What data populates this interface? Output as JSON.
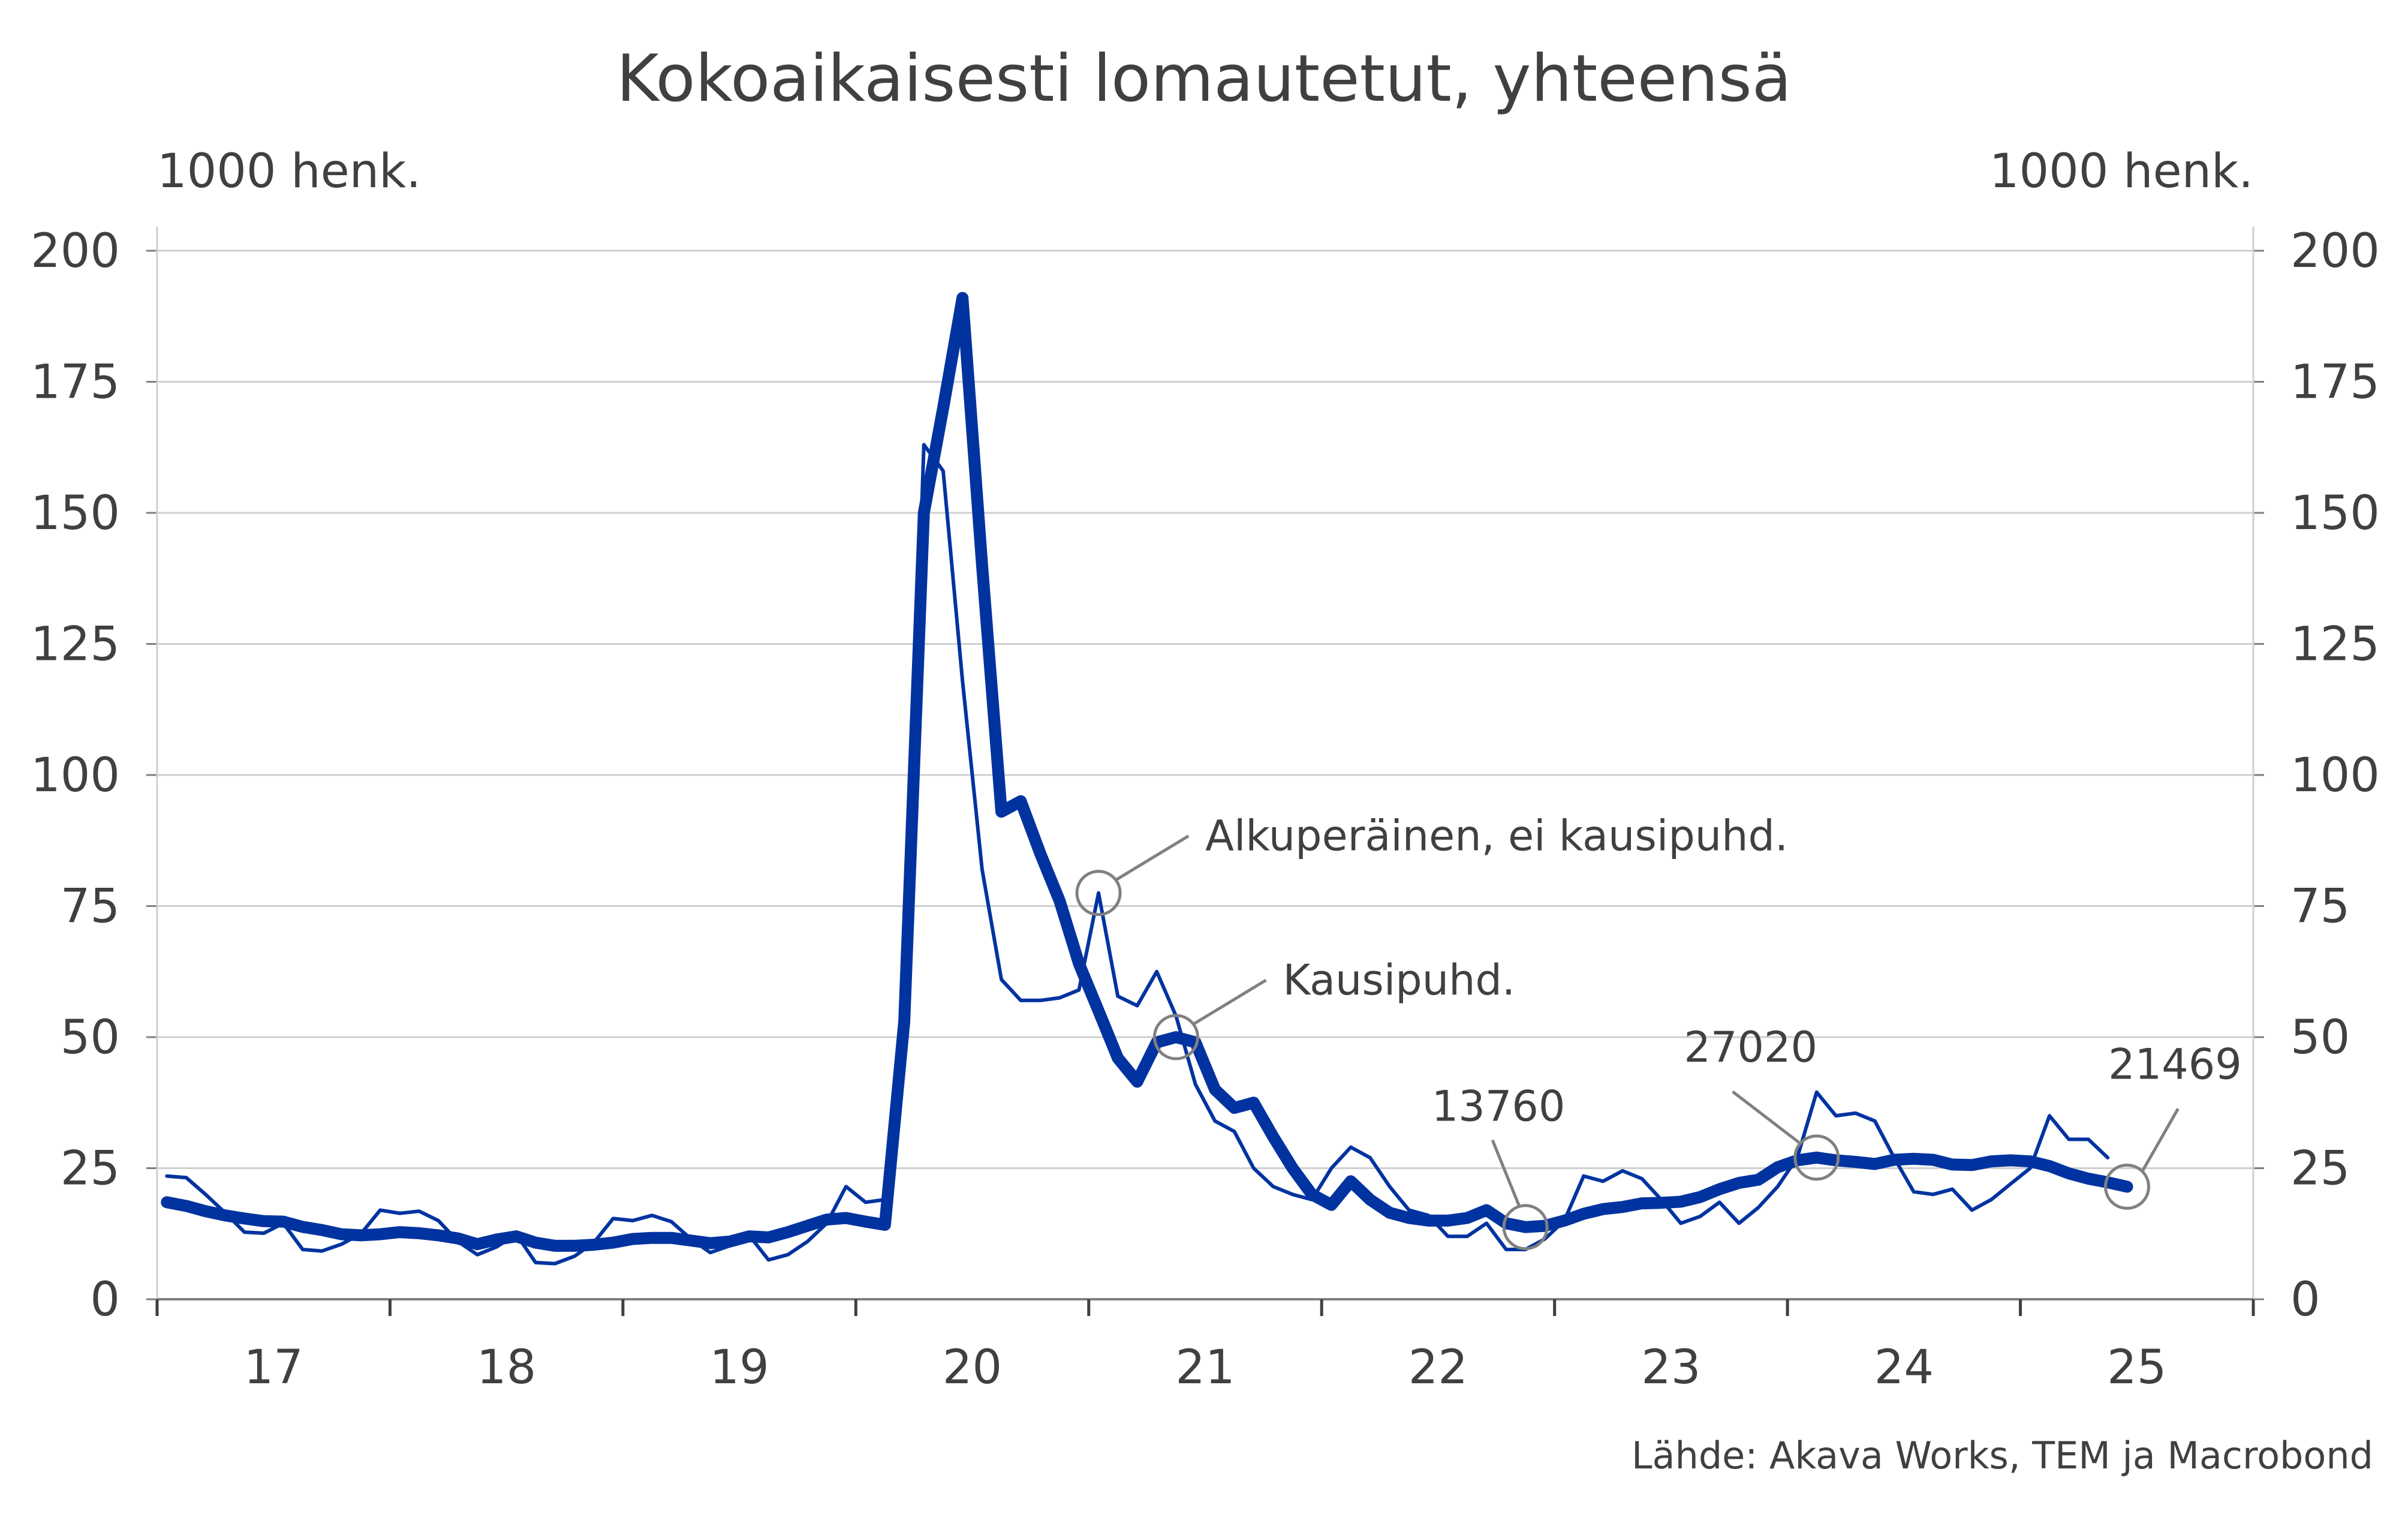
{
  "chart_data": {
    "type": "line",
    "title": "Kokoaikaisesti lomautetut, yhteensä",
    "left_unit": "1000 henk.",
    "right_unit": "1000 henk.",
    "source": "Lähde: Akava Works, TEM ja Macrobond",
    "ylim": [
      0,
      200
    ],
    "y_ticks": [
      "0",
      "25",
      "50",
      "75",
      "100",
      "125",
      "150",
      "175",
      "200"
    ],
    "x_start": 2016.5,
    "x_end": 2025.5,
    "x_labels": [
      {
        "label": "17",
        "x": 2017
      },
      {
        "label": "18",
        "x": 2018
      },
      {
        "label": "19",
        "x": 2019
      },
      {
        "label": "20",
        "x": 2020
      },
      {
        "label": "21",
        "x": 2021
      },
      {
        "label": "22",
        "x": 2022
      },
      {
        "label": "23",
        "x": 2023
      },
      {
        "label": "24",
        "x": 2024
      },
      {
        "label": "25",
        "x": 2025
      }
    ],
    "grid": true,
    "colors": {
      "series": "#0033a0",
      "grid": "#cfcfcf",
      "annotation": "#808080",
      "text": "#404040"
    },
    "series": [
      {
        "name": "Alkuperäinen, ei kausipuhd.",
        "style": "thin",
        "points": [
          [
            2016.542,
            23.5
          ],
          [
            2016.625,
            23.2
          ],
          [
            2016.708,
            20.0
          ],
          [
            2016.792,
            16.5
          ],
          [
            2016.875,
            12.8
          ],
          [
            2016.958,
            12.6
          ],
          [
            2017.042,
            14.5
          ],
          [
            2017.125,
            9.5
          ],
          [
            2017.208,
            9.2
          ],
          [
            2017.292,
            10.5
          ],
          [
            2017.375,
            12.5
          ],
          [
            2017.458,
            17.0
          ],
          [
            2017.542,
            16.4
          ],
          [
            2017.625,
            16.8
          ],
          [
            2017.708,
            15.0
          ],
          [
            2017.792,
            11.0
          ],
          [
            2017.875,
            8.5
          ],
          [
            2017.958,
            10.0
          ],
          [
            2018.042,
            12.4
          ],
          [
            2018.125,
            7.0
          ],
          [
            2018.208,
            6.8
          ],
          [
            2018.292,
            8.2
          ],
          [
            2018.375,
            10.8
          ],
          [
            2018.458,
            15.4
          ],
          [
            2018.542,
            15.0
          ],
          [
            2018.625,
            16.0
          ],
          [
            2018.708,
            14.8
          ],
          [
            2018.792,
            11.5
          ],
          [
            2018.875,
            8.9
          ],
          [
            2018.958,
            10.2
          ],
          [
            2019.042,
            12.2
          ],
          [
            2019.125,
            7.5
          ],
          [
            2019.208,
            8.5
          ],
          [
            2019.292,
            11.0
          ],
          [
            2019.375,
            14.5
          ],
          [
            2019.458,
            21.5
          ],
          [
            2019.542,
            18.5
          ],
          [
            2019.625,
            19.0
          ],
          [
            2019.708,
            52.0
          ],
          [
            2019.792,
            163.0
          ],
          [
            2019.875,
            158.0
          ],
          [
            2019.958,
            118.0
          ],
          [
            2020.042,
            82.0
          ],
          [
            2020.125,
            61.0
          ],
          [
            2020.208,
            57.0
          ],
          [
            2020.292,
            57.0
          ],
          [
            2020.375,
            57.5
          ],
          [
            2020.458,
            59.0
          ],
          [
            2020.542,
            77.5
          ],
          [
            2020.625,
            57.8
          ],
          [
            2020.708,
            56.0
          ],
          [
            2020.792,
            62.5
          ],
          [
            2020.875,
            54.0
          ],
          [
            2020.958,
            41.0
          ],
          [
            2021.042,
            34.0
          ],
          [
            2021.125,
            32.0
          ],
          [
            2021.208,
            25.0
          ],
          [
            2021.292,
            21.5
          ],
          [
            2021.375,
            20.0
          ],
          [
            2021.458,
            19.0
          ],
          [
            2021.542,
            25.0
          ],
          [
            2021.625,
            29.0
          ],
          [
            2021.708,
            27.0
          ],
          [
            2021.792,
            21.5
          ],
          [
            2021.875,
            17.0
          ],
          [
            2021.958,
            16.0
          ],
          [
            2022.042,
            12.0
          ],
          [
            2022.125,
            12.0
          ],
          [
            2022.208,
            14.5
          ],
          [
            2022.292,
            9.5
          ],
          [
            2022.375,
            9.5
          ],
          [
            2022.458,
            11.5
          ],
          [
            2022.542,
            15.0
          ],
          [
            2022.625,
            23.5
          ],
          [
            2022.708,
            22.5
          ],
          [
            2022.792,
            24.5
          ],
          [
            2022.875,
            23.0
          ],
          [
            2022.958,
            19.0
          ],
          [
            2023.042,
            14.5
          ],
          [
            2023.125,
            15.8
          ],
          [
            2023.208,
            18.5
          ],
          [
            2023.292,
            14.5
          ],
          [
            2023.375,
            17.5
          ],
          [
            2023.458,
            21.5
          ],
          [
            2023.542,
            27.0
          ],
          [
            2023.625,
            39.5
          ],
          [
            2023.708,
            35.0
          ],
          [
            2023.792,
            35.5
          ],
          [
            2023.875,
            34.0
          ],
          [
            2023.958,
            27.0
          ],
          [
            2024.042,
            20.5
          ],
          [
            2024.125,
            20.0
          ],
          [
            2024.208,
            21.0
          ],
          [
            2024.292,
            17.0
          ],
          [
            2024.375,
            19.0
          ],
          [
            2024.458,
            22.0
          ],
          [
            2024.542,
            25.0
          ],
          [
            2024.625,
            35.0
          ],
          [
            2024.708,
            30.5
          ],
          [
            2024.792,
            30.5
          ],
          [
            2024.875,
            27.0
          ]
        ]
      },
      {
        "name": "Kausipuhd.",
        "style": "thick",
        "points": [
          [
            2016.542,
            18.5
          ],
          [
            2016.625,
            17.8
          ],
          [
            2016.708,
            16.8
          ],
          [
            2016.792,
            16.0
          ],
          [
            2016.875,
            15.4
          ],
          [
            2016.958,
            14.9
          ],
          [
            2017.042,
            14.8
          ],
          [
            2017.125,
            13.8
          ],
          [
            2017.208,
            13.2
          ],
          [
            2017.292,
            12.4
          ],
          [
            2017.375,
            12.2
          ],
          [
            2017.458,
            12.4
          ],
          [
            2017.542,
            12.8
          ],
          [
            2017.625,
            12.6
          ],
          [
            2017.708,
            12.2
          ],
          [
            2017.792,
            11.6
          ],
          [
            2017.875,
            10.5
          ],
          [
            2017.958,
            11.4
          ],
          [
            2018.042,
            12.0
          ],
          [
            2018.125,
            10.8
          ],
          [
            2018.208,
            10.2
          ],
          [
            2018.292,
            10.2
          ],
          [
            2018.375,
            10.4
          ],
          [
            2018.458,
            10.8
          ],
          [
            2018.542,
            11.5
          ],
          [
            2018.625,
            11.7
          ],
          [
            2018.708,
            11.7
          ],
          [
            2018.792,
            11.2
          ],
          [
            2018.875,
            10.7
          ],
          [
            2018.958,
            11.0
          ],
          [
            2019.042,
            12.0
          ],
          [
            2019.125,
            11.8
          ],
          [
            2019.208,
            12.8
          ],
          [
            2019.292,
            14.0
          ],
          [
            2019.375,
            15.2
          ],
          [
            2019.458,
            15.5
          ],
          [
            2019.542,
            14.8
          ],
          [
            2019.625,
            14.2
          ],
          [
            2019.708,
            53.0
          ],
          [
            2019.792,
            150.0
          ],
          [
            2019.875,
            170.0
          ],
          [
            2019.958,
            191.0
          ],
          [
            2020.042,
            140.0
          ],
          [
            2020.125,
            93.0
          ],
          [
            2020.208,
            95.0
          ],
          [
            2020.292,
            85.0
          ],
          [
            2020.375,
            76.0
          ],
          [
            2020.458,
            64.0
          ],
          [
            2020.542,
            55.0
          ],
          [
            2020.625,
            46.0
          ],
          [
            2020.708,
            41.5
          ],
          [
            2020.792,
            49.0
          ],
          [
            2020.875,
            50.0
          ],
          [
            2020.958,
            49.0
          ],
          [
            2021.042,
            40.0
          ],
          [
            2021.125,
            36.5
          ],
          [
            2021.208,
            37.5
          ],
          [
            2021.292,
            31.0
          ],
          [
            2021.375,
            25.0
          ],
          [
            2021.458,
            20.0
          ],
          [
            2021.542,
            18.0
          ],
          [
            2021.625,
            22.5
          ],
          [
            2021.708,
            19.0
          ],
          [
            2021.792,
            16.5
          ],
          [
            2021.875,
            15.5
          ],
          [
            2021.958,
            15.0
          ],
          [
            2022.042,
            15.0
          ],
          [
            2022.125,
            15.5
          ],
          [
            2022.208,
            17.0
          ],
          [
            2022.292,
            14.5
          ],
          [
            2022.375,
            13.76
          ],
          [
            2022.458,
            14.0
          ],
          [
            2022.542,
            15.0
          ],
          [
            2022.625,
            16.3
          ],
          [
            2022.708,
            17.2
          ],
          [
            2022.792,
            17.6
          ],
          [
            2022.875,
            18.3
          ],
          [
            2022.958,
            18.4
          ],
          [
            2023.042,
            18.6
          ],
          [
            2023.125,
            19.5
          ],
          [
            2023.208,
            21.0
          ],
          [
            2023.292,
            22.2
          ],
          [
            2023.375,
            22.8
          ],
          [
            2023.458,
            25.2
          ],
          [
            2023.542,
            26.5
          ],
          [
            2023.625,
            27.02
          ],
          [
            2023.708,
            26.5
          ],
          [
            2023.792,
            26.2
          ],
          [
            2023.875,
            25.8
          ],
          [
            2023.958,
            26.6
          ],
          [
            2024.042,
            26.8
          ],
          [
            2024.125,
            26.6
          ],
          [
            2024.208,
            25.7
          ],
          [
            2024.292,
            25.6
          ],
          [
            2024.375,
            26.3
          ],
          [
            2024.458,
            26.5
          ],
          [
            2024.542,
            26.3
          ],
          [
            2024.625,
            25.4
          ],
          [
            2024.708,
            24.0
          ],
          [
            2024.792,
            23.0
          ],
          [
            2024.875,
            22.3
          ],
          [
            2024.958,
            21.469
          ]
        ]
      }
    ],
    "annotations": [
      {
        "text": "Alkuperäinen, ei kausipuhd.",
        "x": 2020.542,
        "y": 77.5,
        "side": "right"
      },
      {
        "text": "Kausipuhd.",
        "x": 2020.875,
        "y": 50.0,
        "side": "right"
      },
      {
        "text": "13760",
        "x": 2022.375,
        "y": 13.76,
        "side": "above"
      },
      {
        "text": "27020",
        "x": 2023.625,
        "y": 27.02,
        "side": "above-left"
      },
      {
        "text": "21469",
        "x": 2024.958,
        "y": 21.469,
        "side": "above-right"
      }
    ]
  }
}
